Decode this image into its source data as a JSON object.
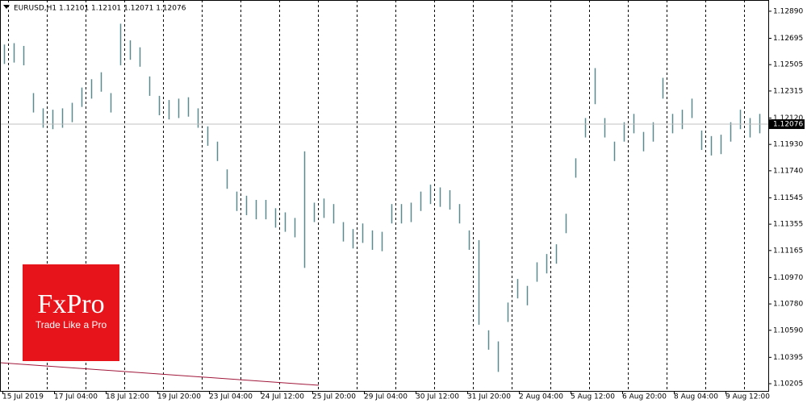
{
  "chart_data": {
    "type": "ohlc",
    "title": "EURUSD,H1  1.12101 1.12101 1.12071 1.12076",
    "color": "#5b8a8e",
    "grid": true,
    "ylim": [
      1.10153,
      1.12971
    ],
    "yticks": [
      {
        "value": 1.1289,
        "label": "1.12890"
      },
      {
        "value": 1.12695,
        "label": "1.12695"
      },
      {
        "value": 1.12505,
        "label": "1.12505"
      },
      {
        "value": 1.12315,
        "label": "1.12315"
      },
      {
        "value": 1.1212,
        "label": "1.12120"
      },
      {
        "value": 1.1193,
        "label": "1.11930"
      },
      {
        "value": 1.1174,
        "label": "1.11740"
      },
      {
        "value": 1.11545,
        "label": "1.11545"
      },
      {
        "value": 1.11355,
        "label": "1.11355"
      },
      {
        "value": 1.11165,
        "label": "1.11165"
      },
      {
        "value": 1.1097,
        "label": "1.10970"
      },
      {
        "value": 1.1078,
        "label": "1.10780"
      },
      {
        "value": 1.1059,
        "label": "1.10590"
      },
      {
        "value": 1.10395,
        "label": "1.10395"
      },
      {
        "value": 1.10205,
        "label": "1.10205"
      }
    ],
    "last_price": 1.12076,
    "time_labels": [
      "15 Jul 2019",
      "17 Jul 04:00",
      "18 Jul 12:00",
      "19 Jul 20:00",
      "23 Jul 04:00",
      "24 Jul 12:00",
      "25 Jul 20:00",
      "29 Jul 04:00",
      "30 Jul 12:00",
      "31 Jul 20:00",
      "2 Aug 04:00",
      "5 Aug 12:00",
      "6 Aug 20:00",
      "8 Aug 04:00",
      "9 Aug 12:00"
    ],
    "high": [
      1.1265,
      1.1266,
      1.1264,
      1.123,
      1.1219,
      1.1218,
      1.1219,
      1.1223,
      1.1234,
      1.124,
      1.1245,
      1.123,
      1.128,
      1.1268,
      1.1263,
      1.1242,
      1.1228,
      1.1225,
      1.1226,
      1.1227,
      1.1219,
      1.1206,
      1.1195,
      1.1175,
      1.1159,
      1.1156,
      1.1153,
      1.1153,
      1.1147,
      1.1144,
      1.114,
      1.1188,
      1.1151,
      1.1154,
      1.115,
      1.1137,
      1.1132,
      1.1136,
      1.1131,
      1.113,
      1.115,
      1.115,
      1.1151,
      1.1159,
      1.1164,
      1.1162,
      1.116,
      1.115,
      1.1131,
      1.1124,
      1.1059,
      1.1051,
      1.1079,
      1.1096,
      1.1091,
      1.1108,
      1.1114,
      1.1121,
      1.1143,
      1.1183,
      1.1212,
      1.1248,
      1.1212,
      1.1195,
      1.1209,
      1.1215,
      1.1202,
      1.1209,
      1.1241,
      1.1215,
      1.1218,
      1.1226,
      1.1203,
      1.1199,
      1.12,
      1.1209,
      1.1218,
      1.1212,
      1.1215
    ],
    "low": [
      1.1251,
      1.1252,
      1.125,
      1.1216,
      1.1205,
      1.1204,
      1.1205,
      1.1209,
      1.122,
      1.1226,
      1.1231,
      1.1216,
      1.125,
      1.1254,
      1.1249,
      1.1228,
      1.1214,
      1.1211,
      1.1212,
      1.1213,
      1.1205,
      1.1192,
      1.1181,
      1.1161,
      1.1145,
      1.1142,
      1.1139,
      1.1139,
      1.1133,
      1.113,
      1.1126,
      1.1104,
      1.1137,
      1.114,
      1.1136,
      1.1123,
      1.1118,
      1.1122,
      1.1117,
      1.1116,
      1.1136,
      1.1136,
      1.1137,
      1.1145,
      1.115,
      1.1148,
      1.1146,
      1.1136,
      1.1117,
      1.1063,
      1.1045,
      1.1029,
      1.1065,
      1.1082,
      1.1077,
      1.1094,
      1.11,
      1.1107,
      1.1129,
      1.1169,
      1.1198,
      1.1222,
      1.1198,
      1.1181,
      1.1195,
      1.1201,
      1.1188,
      1.1195,
      1.1226,
      1.1201,
      1.1204,
      1.1212,
      1.1189,
      1.1185,
      1.1186,
      1.1195,
      1.1204,
      1.1198,
      1.1201
    ]
  },
  "logo": {
    "name": "FxPro",
    "tagline": "Trade Like a Pro"
  }
}
